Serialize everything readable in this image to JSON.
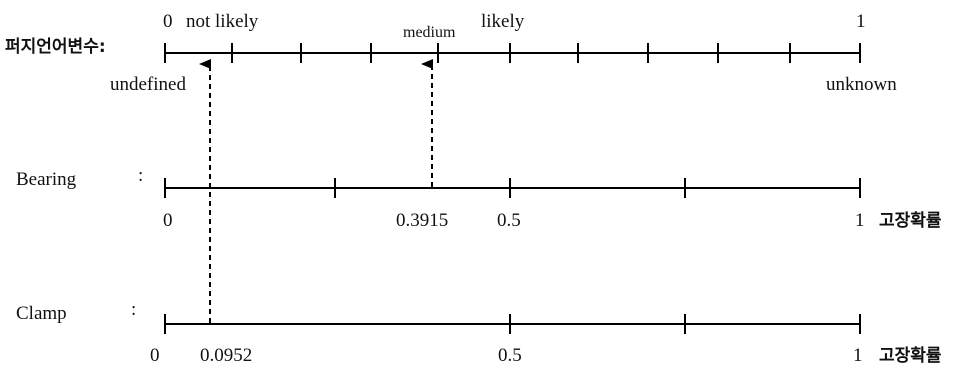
{
  "fuzzy_scale": {
    "label": "퍼지언어변수:",
    "top_labels": {
      "zero": "0",
      "not_likely": "not likely",
      "medium": "medium",
      "likely": "likely",
      "one": "1"
    },
    "bottom_labels": {
      "undefined": "undefined",
      "unknown": "unknown"
    }
  },
  "bearing": {
    "label": "Bearing",
    "colon": ":",
    "ticks": {
      "zero": "0",
      "value": "0.3915",
      "half": "0.5",
      "one": "1"
    },
    "unit": "고장확률"
  },
  "clamp": {
    "label": "Clamp",
    "colon": ":",
    "ticks": {
      "zero": "0",
      "value": "0.0952",
      "half": "0.5",
      "one": "1"
    },
    "unit": "고장확률"
  }
}
